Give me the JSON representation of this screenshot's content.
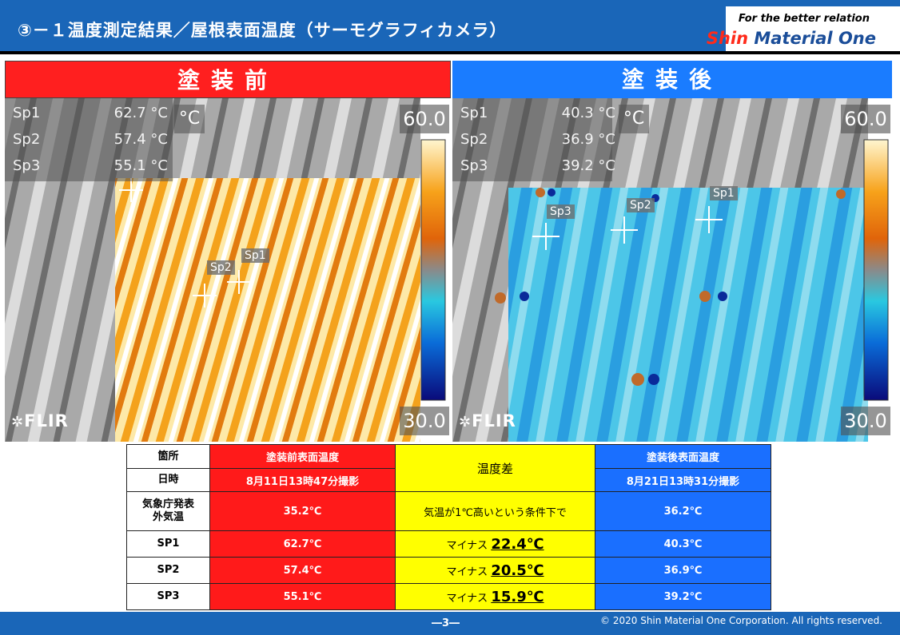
{
  "header": {
    "title": "③－１温度測定結果／屋根表面温度（サーモグラフィカメラ）",
    "brand_tagline": "For the better relation",
    "brand_shin": "Shin",
    "brand_rest": " Material One"
  },
  "before": {
    "heading": "塗装前",
    "spots": [
      {
        "label": "Sp1",
        "value": "62.7 °C"
      },
      {
        "label": "Sp2",
        "value": "57.4 °C"
      },
      {
        "label": "Sp3",
        "value": "55.1 °C"
      }
    ],
    "unit": "°C",
    "scale_max": "60.0",
    "scale_min": "30.0",
    "logo": "FLIR",
    "markers": [
      "Sp1",
      "Sp2"
    ]
  },
  "after": {
    "heading": "塗装後",
    "spots": [
      {
        "label": "Sp1",
        "value": "40.3 °C"
      },
      {
        "label": "Sp2",
        "value": "36.9 °C"
      },
      {
        "label": "Sp3",
        "value": "39.2 °C"
      }
    ],
    "unit": "°C",
    "scale_max": "60.0",
    "scale_min": "30.0",
    "logo": "FLIR",
    "markers": [
      "Sp1",
      "Sp2",
      "Sp3"
    ]
  },
  "table": {
    "row_location": "箇所",
    "row_datetime": "日時",
    "row_outdoor_1": "気象庁発表",
    "row_outdoor_2": "外気温",
    "before_header": "塗装前表面温度",
    "before_date": "8月11日13時47分撮影",
    "diff_header": "温度差",
    "after_header": "塗装後表面温度",
    "after_date": "8月21日13時31分撮影",
    "outdoor_before": "35.2℃",
    "outdoor_note": "気温が1℃高いという条件下で",
    "outdoor_after": "36.2℃",
    "rows": [
      {
        "label": "SP1",
        "before": "62.7℃",
        "diff_prefix": "マイナス",
        "diff": "22.4℃",
        "after": "40.3℃"
      },
      {
        "label": "SP2",
        "before": "57.4℃",
        "diff_prefix": "マイナス",
        "diff": "20.5℃",
        "after": "36.9℃"
      },
      {
        "label": "SP3",
        "before": "55.1℃",
        "diff_prefix": "マイナス",
        "diff": "15.9℃",
        "after": "39.2℃"
      }
    ]
  },
  "footer": {
    "page": "―3―",
    "copyright": "© 2020 Shin Material One Corporation. All rights reserved."
  },
  "colors": {
    "header_blue": "#1a66b8",
    "before_red": "#ff1f1f",
    "after_blue": "#1a7cff",
    "diff_yellow": "#ffff00"
  }
}
